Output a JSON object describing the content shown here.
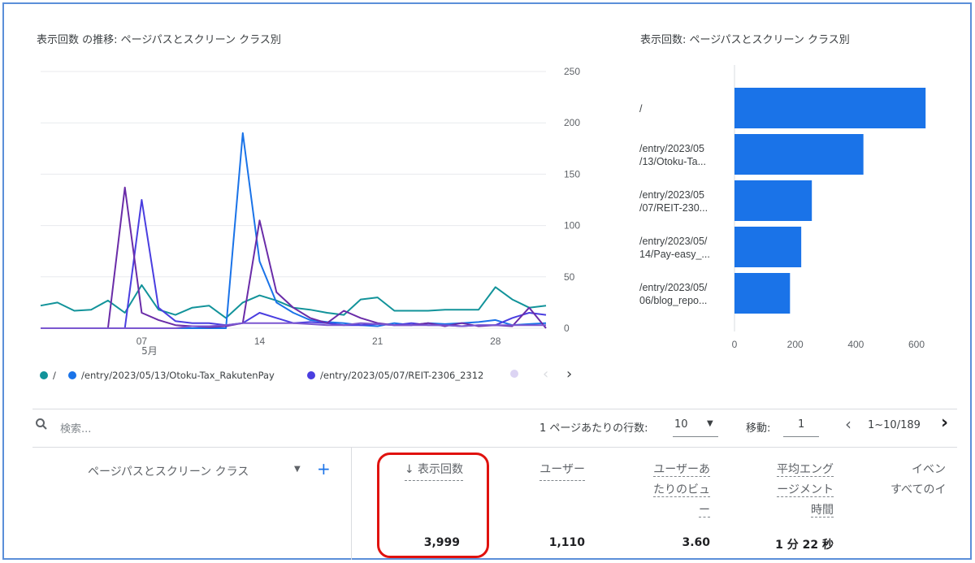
{
  "line_card": {
    "title": "表示回数 の推移: ページパスとスクリーン クラス別",
    "y_ticks": [
      "250",
      "200",
      "150",
      "100",
      "50",
      "0"
    ],
    "x_ticks": [
      "07",
      "14",
      "21",
      "28"
    ],
    "x_month": "5月",
    "legend": [
      {
        "label": "/",
        "color": "#12939a"
      },
      {
        "label": "/entry/2023/05/13/Otoku-Tax_RakutenPay",
        "color": "#1a73e8"
      },
      {
        "label": "/entry/2023/05/07/REIT-2306_2312",
        "color": "#4a3ee0"
      }
    ],
    "legend_prev": "‹",
    "legend_next": "›"
  },
  "bar_card": {
    "title": "表示回数: ページパスとスクリーン クラス別",
    "x_ticks": [
      "0",
      "200",
      "400",
      "600"
    ],
    "bars": [
      {
        "label_line1": "/",
        "label_line2": "",
        "value": 630
      },
      {
        "label_line1": "/entry/2023/05",
        "label_line2": "/13/Otoku-Ta...",
        "value": 425
      },
      {
        "label_line1": "/entry/2023/05",
        "label_line2": "/07/REIT-230...",
        "value": 255
      },
      {
        "label_line1": "/entry/2023/05/",
        "label_line2": "14/Pay-easy_...",
        "value": 220
      },
      {
        "label_line1": "/entry/2023/05/",
        "label_line2": "06/blog_repo...",
        "value": 183
      }
    ]
  },
  "chart_data": [
    {
      "type": "line",
      "title": "表示回数 の推移: ページパスとスクリーン クラス別",
      "x": [
        "5/1",
        "5/2",
        "5/3",
        "5/4",
        "5/5",
        "5/6",
        "5/7",
        "5/8",
        "5/9",
        "5/10",
        "5/11",
        "5/12",
        "5/13",
        "5/14",
        "5/15",
        "5/16",
        "5/17",
        "5/18",
        "5/19",
        "5/20",
        "5/21",
        "5/22",
        "5/23",
        "5/24",
        "5/25",
        "5/26",
        "5/27",
        "5/28",
        "5/29",
        "5/30",
        "5/31"
      ],
      "ylim": [
        0,
        250
      ],
      "series": [
        {
          "name": "/",
          "color": "#12939a",
          "values": [
            22,
            25,
            17,
            18,
            27,
            15,
            42,
            18,
            13,
            20,
            22,
            10,
            25,
            32,
            27,
            20,
            18,
            15,
            13,
            28,
            30,
            17,
            17,
            17,
            18,
            18,
            18,
            40,
            28,
            20,
            22
          ]
        },
        {
          "name": "/entry/2023/05/13/Otoku-Tax_RakutenPay",
          "color": "#1a73e8",
          "values": [
            0,
            0,
            0,
            0,
            0,
            0,
            0,
            0,
            0,
            0,
            0,
            0,
            190,
            65,
            25,
            15,
            8,
            6,
            5,
            3,
            2,
            5,
            3,
            5,
            4,
            5,
            6,
            8,
            3,
            4,
            5
          ]
        },
        {
          "name": "/entry/2023/05/07/REIT-2306_2312",
          "color": "#4a3ee0",
          "values": [
            0,
            0,
            0,
            0,
            0,
            0,
            125,
            20,
            7,
            5,
            5,
            3,
            5,
            15,
            10,
            5,
            6,
            5,
            3,
            3,
            4,
            3,
            5,
            3,
            3,
            2,
            3,
            3,
            10,
            15,
            13
          ]
        },
        {
          "color": "#6a2ca8",
          "values": [
            0,
            0,
            0,
            0,
            0,
            137,
            15,
            8,
            3,
            2,
            1,
            2,
            5,
            105,
            35,
            20,
            10,
            5,
            17,
            10,
            5,
            3,
            3,
            5,
            2,
            5,
            2,
            3,
            2,
            20,
            0
          ]
        },
        {
          "color": "#7b57d0",
          "values": [
            0,
            0,
            0,
            0,
            0,
            0,
            0,
            0,
            0,
            2,
            2,
            3,
            5,
            5,
            5,
            5,
            4,
            3,
            3,
            5,
            4,
            3,
            3,
            3,
            3,
            2,
            3,
            3,
            3,
            3,
            3
          ]
        }
      ]
    },
    {
      "type": "bar",
      "title": "表示回数: ページパスとスクリーン クラス別",
      "orientation": "horizontal",
      "categories": [
        "/",
        "/entry/2023/05/13/Otoku-Ta...",
        "/entry/2023/05/07/REIT-230...",
        "/entry/2023/05/14/Pay-easy_...",
        "/entry/2023/05/06/blog_repo..."
      ],
      "values": [
        630,
        425,
        255,
        220,
        183
      ],
      "xlim": [
        0,
        650
      ]
    }
  ],
  "toolbar": {
    "search_placeholder": "検索...",
    "rows_label": "1 ページあたりの行数:",
    "rows_value": "10",
    "goto_label": "移動:",
    "goto_value": "1",
    "range_text": "1~10/189"
  },
  "table": {
    "dimension_header": "ページパスとスクリーン クラス",
    "add_label": "+",
    "columns": [
      {
        "lines": [
          "↓ 表示回数"
        ],
        "total": "3,999"
      },
      {
        "lines": [
          "ユーザー"
        ],
        "total": "1,110"
      },
      {
        "lines": [
          "ユーザーあ",
          "たりのビュ",
          "ー"
        ],
        "total": "3.60"
      },
      {
        "lines": [
          "平均エング",
          "ージメント",
          "時間"
        ],
        "total": "1 分 22 秒"
      },
      {
        "lines": [
          "イベン",
          "すべてのイ"
        ],
        "total": ""
      }
    ]
  }
}
